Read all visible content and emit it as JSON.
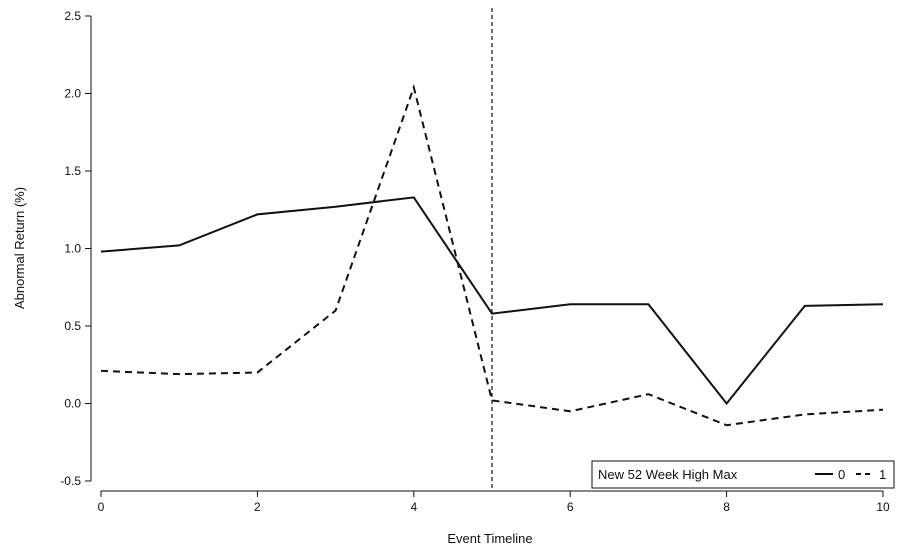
{
  "chart_data": {
    "type": "line",
    "xlabel": "Event Timeline",
    "ylabel": "Abnormal Return (%)",
    "xlim": [
      0,
      10
    ],
    "ylim": [
      -0.5,
      2.5
    ],
    "xticks": [
      0,
      2,
      4,
      6,
      8,
      10
    ],
    "yticks": [
      -0.5,
      0.0,
      0.5,
      1.0,
      1.5,
      2.0,
      2.5
    ],
    "ytick_labels": [
      "-0.5",
      "0.0",
      "0.5",
      "1.0",
      "1.5",
      "2.0",
      "2.5"
    ],
    "grid": false,
    "reference_line": {
      "x": 5,
      "style": "dashed"
    },
    "legend": {
      "title": "New 52 Week High Max",
      "placement": "bottom-right",
      "entries": [
        {
          "label": "0",
          "style": "solid"
        },
        {
          "label": "1",
          "style": "dashed"
        }
      ]
    },
    "x": [
      0,
      1,
      2,
      3,
      4,
      5,
      6,
      7,
      8,
      9,
      10
    ],
    "series": [
      {
        "name": "0",
        "style": "solid",
        "color": "#111111",
        "values": [
          0.98,
          1.02,
          1.22,
          1.27,
          1.33,
          0.58,
          0.64,
          0.64,
          0.0,
          0.63,
          0.64
        ]
      },
      {
        "name": "1",
        "style": "dashed",
        "color": "#111111",
        "values": [
          0.21,
          0.19,
          0.2,
          0.6,
          2.04,
          0.02,
          -0.05,
          0.06,
          -0.14,
          -0.07,
          -0.04
        ]
      }
    ]
  }
}
